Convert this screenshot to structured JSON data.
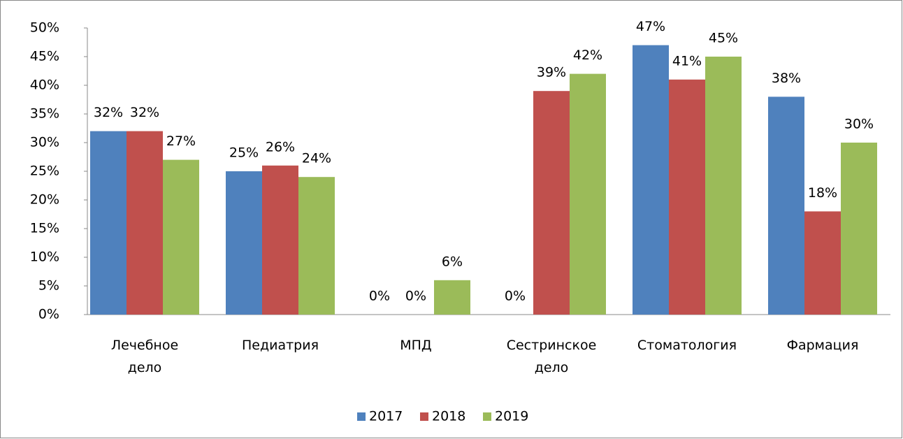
{
  "chart_data": {
    "type": "bar",
    "categories": [
      "Лечебное дело",
      "Педиатрия",
      "МПД",
      "Сестринское дело",
      "Стоматология",
      "Фармация"
    ],
    "series": [
      {
        "name": "2017",
        "color": "#4f81bd",
        "values": [
          32,
          25,
          0,
          0,
          47,
          38
        ],
        "value_labels": [
          "32%",
          "25%",
          "0%",
          "0%",
          "47%",
          "38%"
        ]
      },
      {
        "name": "2018",
        "color": "#c0504d",
        "values": [
          32,
          26,
          0,
          39,
          41,
          18
        ],
        "value_labels": [
          "32%",
          "26%",
          "0%",
          "39%",
          "41%",
          "18%"
        ]
      },
      {
        "name": "2019",
        "color": "#9bbb59",
        "values": [
          27,
          24,
          6,
          42,
          45,
          30
        ],
        "value_labels": [
          "27%",
          "24%",
          "6%",
          "42%",
          "45%",
          "30%"
        ]
      }
    ],
    "ylim": [
      0,
      50
    ],
    "yticks": [
      {
        "value": 0,
        "label": "0%"
      },
      {
        "value": 5,
        "label": "5%"
      },
      {
        "value": 10,
        "label": "10%"
      },
      {
        "value": 15,
        "label": "15%"
      },
      {
        "value": 20,
        "label": "20%"
      },
      {
        "value": 25,
        "label": "25%"
      },
      {
        "value": 30,
        "label": "30%"
      },
      {
        "value": 35,
        "label": "35%"
      },
      {
        "value": 40,
        "label": "40%"
      },
      {
        "value": 45,
        "label": "45%"
      },
      {
        "value": 50,
        "label": "50%"
      }
    ],
    "legend": "bottom"
  }
}
